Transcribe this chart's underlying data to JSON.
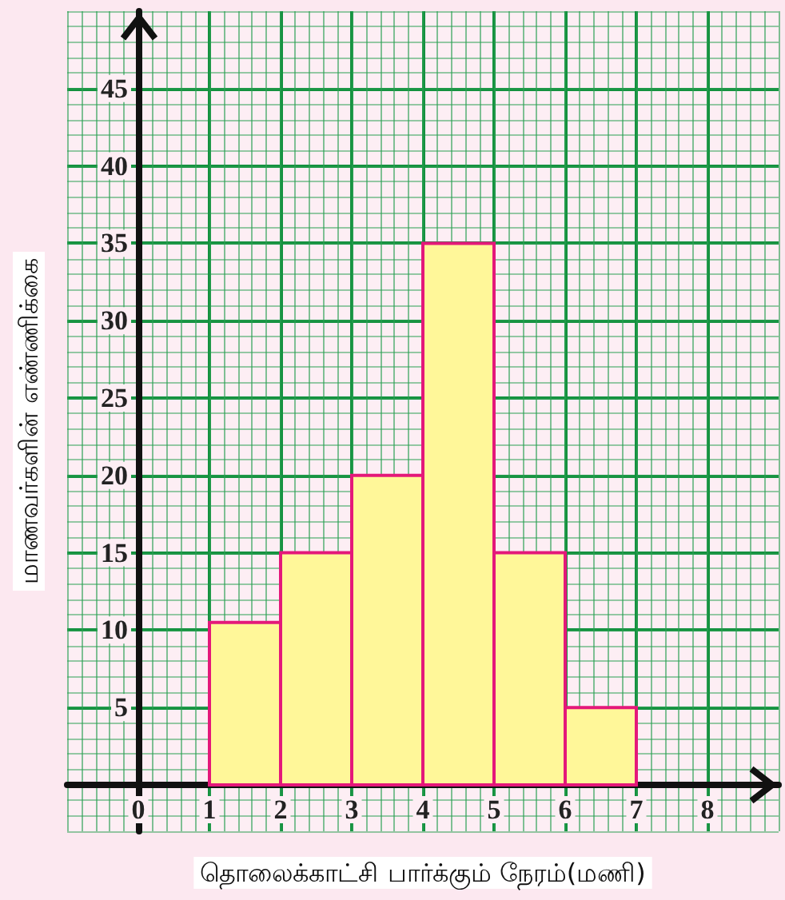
{
  "chart_data": {
    "type": "histogram",
    "xlabel": "தொலைக்காட்சி பார்க்கும் நேரம்(மணி)",
    "ylabel": "மாணவர்களின் எண்ணிக்கை",
    "bins": [
      1,
      2,
      3,
      4,
      5,
      6,
      7
    ],
    "values": [
      10.5,
      15,
      20,
      35,
      15,
      5
    ],
    "color": "#fff799",
    "xlim": [
      -1,
      9
    ],
    "xticks": [
      0,
      1,
      2,
      3,
      4,
      5,
      6,
      7,
      8
    ],
    "ylim": [
      -3,
      50
    ],
    "yticks": [
      5,
      10,
      15,
      20,
      25,
      30,
      35,
      40,
      45
    ],
    "grid": true
  }
}
